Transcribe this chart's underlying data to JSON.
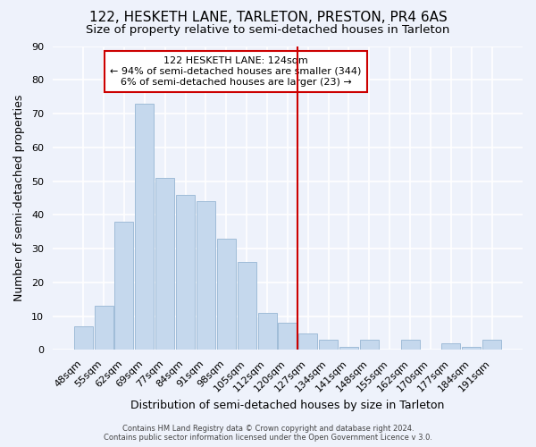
{
  "title": "122, HESKETH LANE, TARLETON, PRESTON, PR4 6AS",
  "subtitle": "Size of property relative to semi-detached houses in Tarleton",
  "xlabel": "Distribution of semi-detached houses by size in Tarleton",
  "ylabel": "Number of semi-detached properties",
  "footer_line1": "Contains HM Land Registry data © Crown copyright and database right 2024.",
  "footer_line2": "Contains public sector information licensed under the Open Government Licence v 3.0.",
  "annotation_title": "122 HESKETH LANE: 124sqm",
  "annotation_line1": "← 94% of semi-detached houses are smaller (344)",
  "annotation_line2": "6% of semi-detached houses are larger (23) →",
  "bar_labels": [
    "48sqm",
    "55sqm",
    "62sqm",
    "69sqm",
    "77sqm",
    "84sqm",
    "91sqm",
    "98sqm",
    "105sqm",
    "112sqm",
    "120sqm",
    "127sqm",
    "134sqm",
    "141sqm",
    "148sqm",
    "155sqm",
    "162sqm",
    "170sqm",
    "177sqm",
    "184sqm",
    "191sqm"
  ],
  "bar_values": [
    7,
    13,
    38,
    73,
    51,
    46,
    44,
    33,
    26,
    11,
    8,
    5,
    3,
    1,
    3,
    0,
    3,
    0,
    2,
    1,
    3
  ],
  "bar_color": "#c5d8ed",
  "bar_edge_color": "#a0bcd8",
  "vline_index": 11,
  "vline_color": "#cc0000",
  "ylim": [
    0,
    90
  ],
  "yticks": [
    0,
    10,
    20,
    30,
    40,
    50,
    60,
    70,
    80,
    90
  ],
  "bg_color": "#eef2fb",
  "grid_color": "#ffffff",
  "title_fontsize": 11,
  "subtitle_fontsize": 9.5,
  "axis_label_fontsize": 9,
  "tick_fontsize": 8,
  "footer_fontsize": 6
}
